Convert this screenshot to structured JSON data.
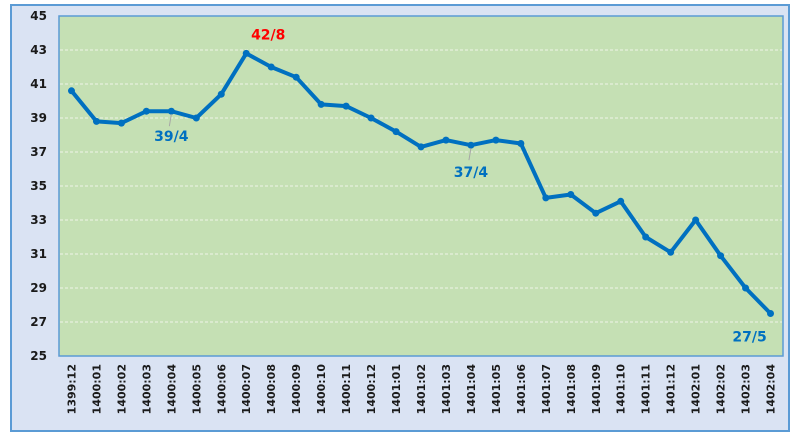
{
  "chart_data": {
    "type": "line",
    "title": "",
    "xlabel": "",
    "ylabel": "",
    "ylim": [
      25,
      45
    ],
    "yticks": [
      25,
      27,
      29,
      31,
      33,
      35,
      37,
      39,
      41,
      43,
      45
    ],
    "grid": true,
    "legend": "none",
    "categories": [
      "1399:12",
      "1400:01",
      "1400:02",
      "1400:03",
      "1400:04",
      "1400:05",
      "1400:06",
      "1400:07",
      "1400:08",
      "1400:09",
      "1400:10",
      "1400:11",
      "1400:12",
      "1401:01",
      "1401:02",
      "1401:03",
      "1401:04",
      "1401:05",
      "1401:06",
      "1401:07",
      "1401:08",
      "1401:09",
      "1401:10",
      "1401:11",
      "1401:12",
      "1402:01",
      "1402:02",
      "1402:03",
      "1402:04"
    ],
    "series": [
      {
        "values": [
          40.6,
          38.8,
          38.7,
          39.4,
          39.4,
          39.0,
          40.4,
          42.8,
          42.0,
          41.4,
          39.8,
          39.7,
          39.0,
          38.2,
          37.3,
          37.7,
          37.4,
          37.7,
          37.5,
          34.3,
          34.5,
          33.4,
          34.1,
          32.0,
          31.1,
          33.0,
          30.9,
          29.0,
          27.5
        ]
      }
    ],
    "annotations": [
      {
        "index": 4,
        "text": "39/4",
        "color": "#0070c0"
      },
      {
        "index": 7,
        "text": "42/8",
        "color": "#ff0000"
      },
      {
        "index": 16,
        "text": "37/4",
        "color": "#0070c0"
      },
      {
        "index": 28,
        "text": "27/5",
        "color": "#0070c0"
      }
    ],
    "colors": {
      "line": "#0070c0",
      "plot_bg": "#c5e0b4",
      "outer_bg": "#dae3f3",
      "border": "#5b9bd5"
    }
  }
}
